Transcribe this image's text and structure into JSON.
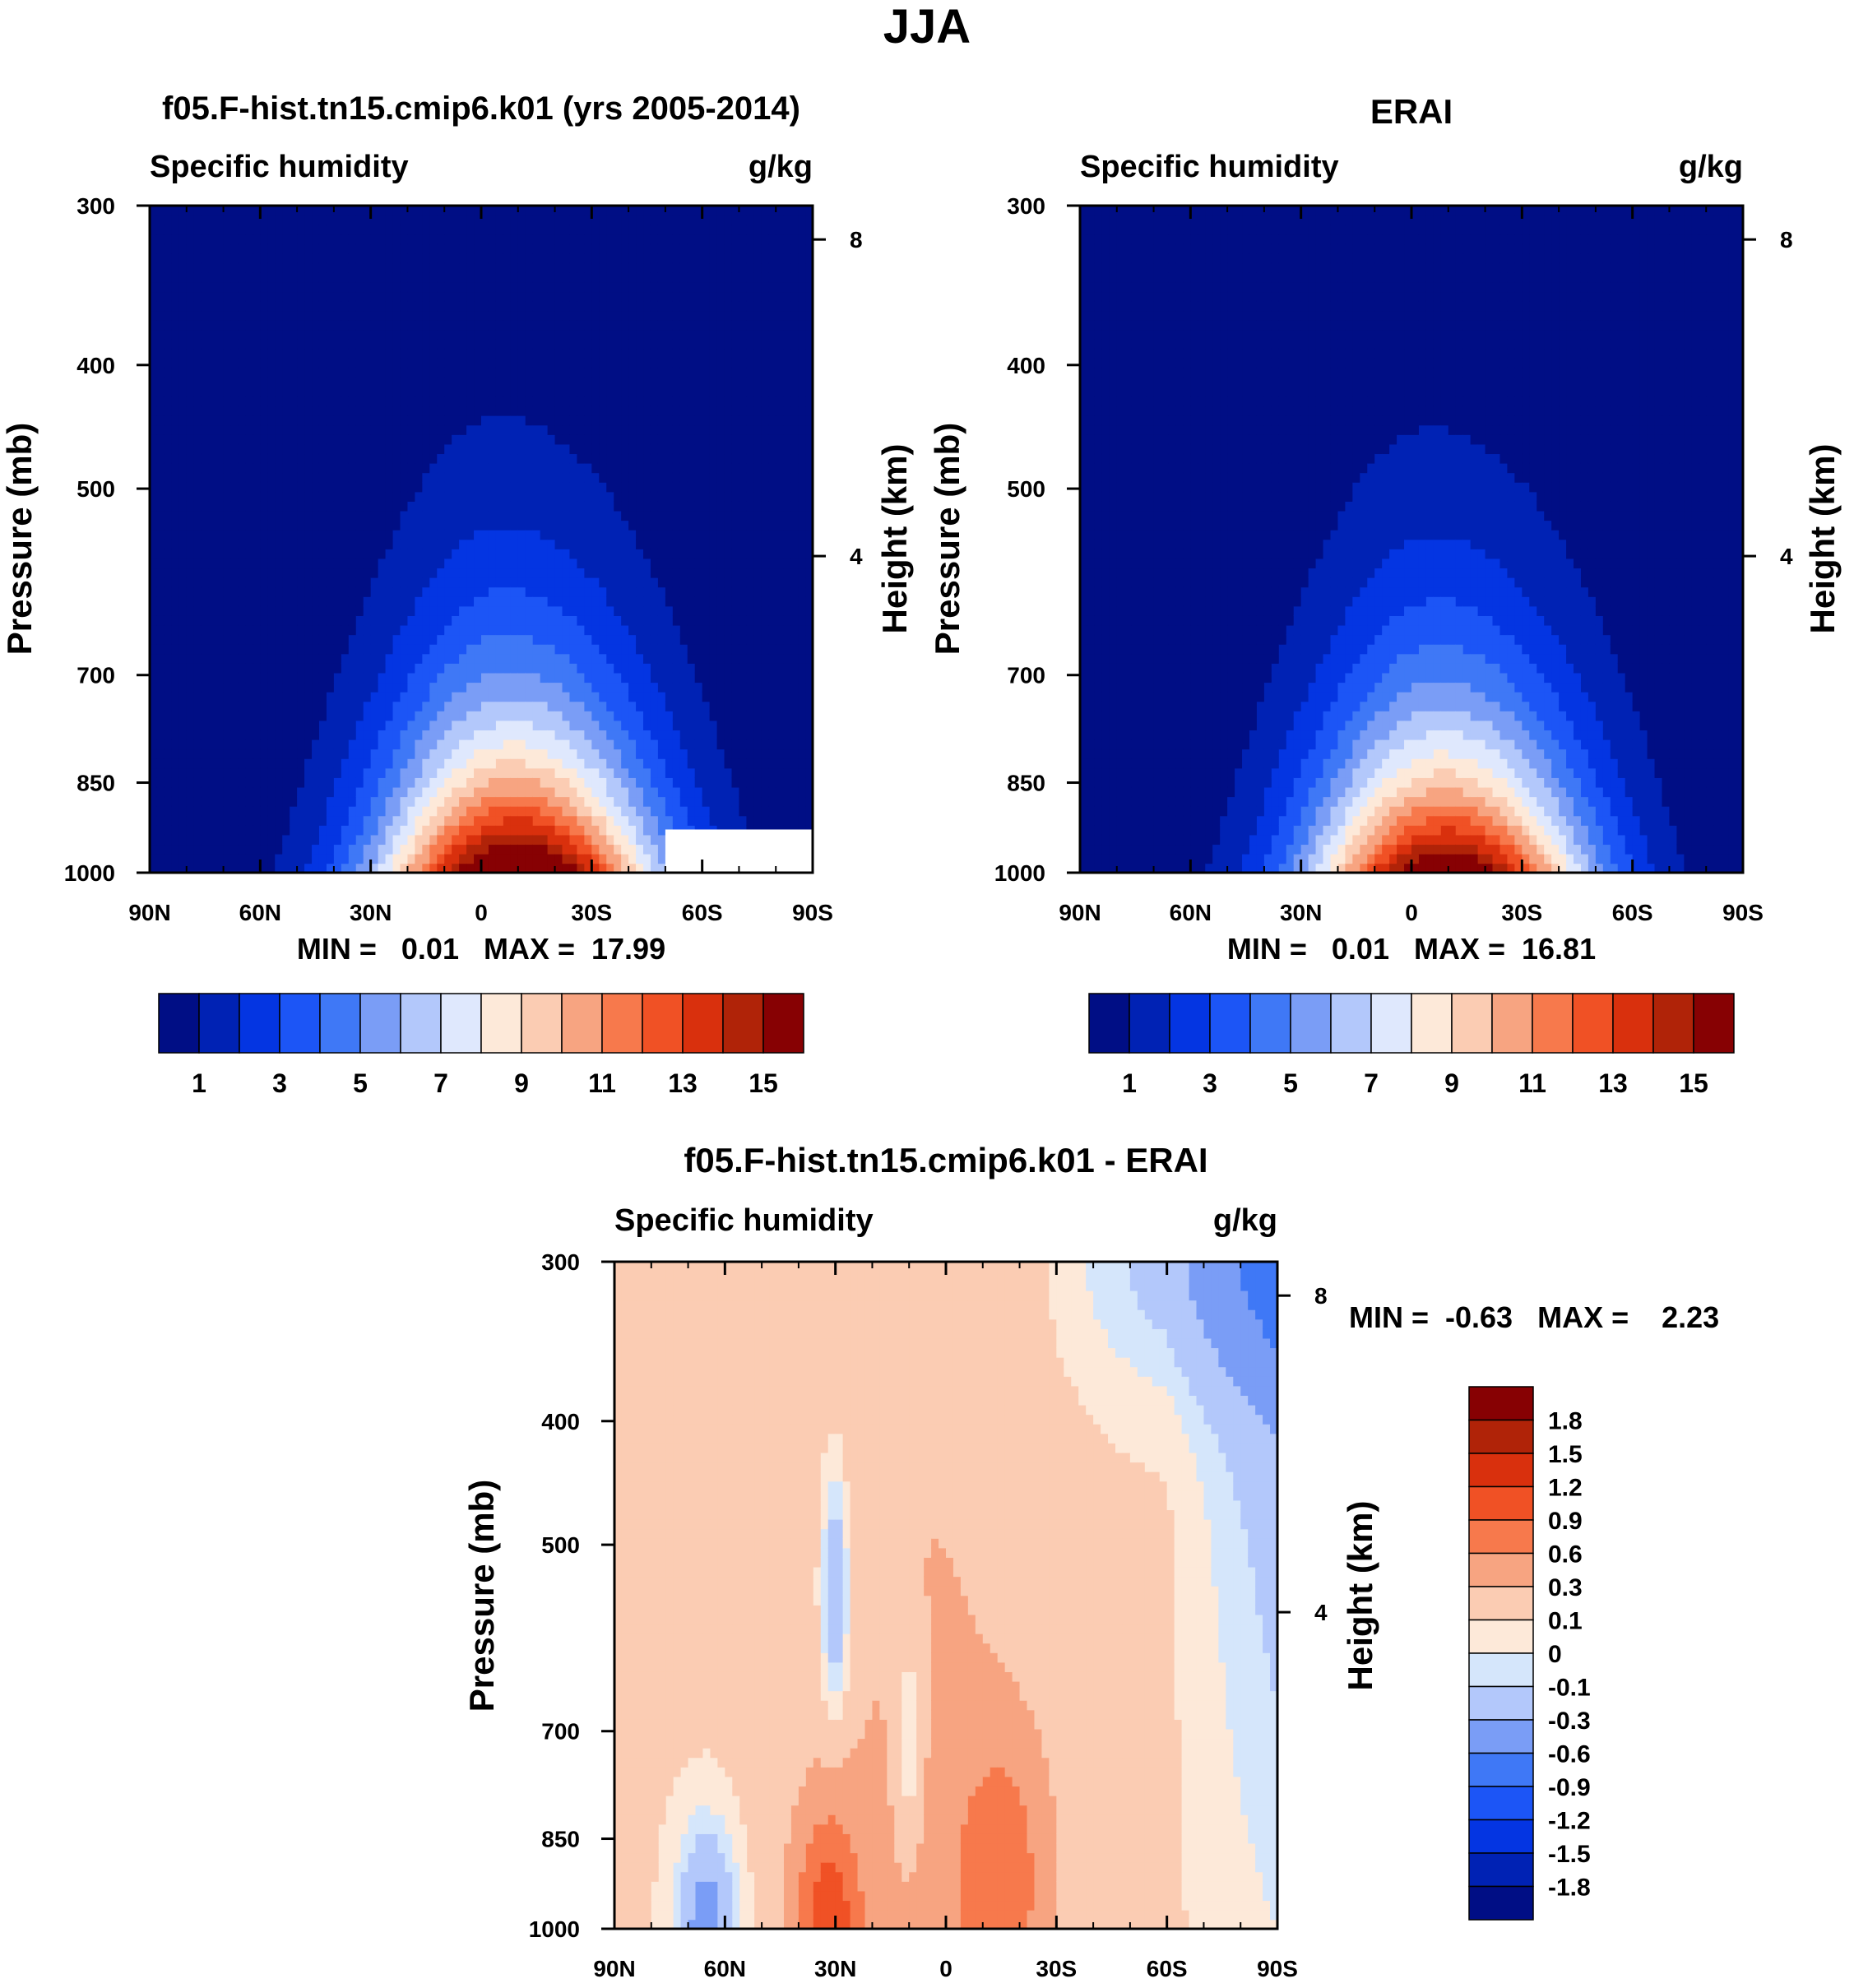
{
  "title": "JJA",
  "panels": [
    {
      "id": "model",
      "title": "f05.F-hist.tn15.cmip6.k01 (yrs 2005-2014)",
      "left_string": "Specific humidity",
      "right_string": "g/kg",
      "y_label": "Pressure (mb)",
      "y2_label": "Height (km)",
      "stats": "MIN =   0.01   MAX =  17.99"
    },
    {
      "id": "obs",
      "title": "ERAI",
      "left_string": "Specific humidity",
      "right_string": "g/kg",
      "y_label": "Pressure (mb)",
      "y2_label": "Height (km)",
      "stats": "MIN =   0.01   MAX =  16.81"
    },
    {
      "id": "diff",
      "title": "f05.F-hist.tn15.cmip6.k01 - ERAI",
      "left_string": "Specific humidity",
      "right_string": "g/kg",
      "y_label": "Pressure (mb)",
      "y2_label": "Height (km)",
      "stats": "MIN =  -0.63   MAX =    2.23"
    }
  ],
  "palette_mean": [
    "#000e85",
    "#0022b4",
    "#0435e2",
    "#1c55f6",
    "#3f78f6",
    "#7a9df6",
    "#b3c8fb",
    "#dfe8fd",
    "#fde9d9",
    "#fbccb3",
    "#f7a481",
    "#f7794c",
    "#f05125",
    "#d9300d",
    "#b02308",
    "#870103"
  ],
  "palette_diff": [
    "#000e85",
    "#0022b4",
    "#0435e2",
    "#1c55f6",
    "#3f78f6",
    "#7a9df6",
    "#b3c8fb",
    "#d5e6fb",
    "#fde9d9",
    "#fbccb3",
    "#f7a481",
    "#f7794c",
    "#f05125",
    "#d9300d",
    "#b02308",
    "#870103"
  ],
  "colorbar_mean_labels": [
    "1",
    "3",
    "5",
    "7",
    "9",
    "11",
    "13",
    "15"
  ],
  "colorbar_diff_labels": [
    "1.8",
    "1.5",
    "1.2",
    "0.9",
    "0.6",
    "0.3",
    "0.1",
    "0",
    "-0.1",
    "-0.3",
    "-0.6",
    "-0.9",
    "-1.2",
    "-1.5",
    "-1.8"
  ],
  "chart_data": [
    {
      "type": "heatmap",
      "title": "f05.F-hist.tn15.cmip6.k01 (yrs 2005-2014)",
      "xlabel": "",
      "ylabel": "Pressure (mb)",
      "x_ticks": [
        "90N",
        "60N",
        "30N",
        "0",
        "30S",
        "60S",
        "90S"
      ],
      "y_ticks": [
        300,
        400,
        500,
        700,
        850,
        1000
      ],
      "y2_ticks": [
        8,
        4
      ],
      "xlim": [
        90,
        -90
      ],
      "ylim": [
        1000,
        300
      ],
      "y_scale": "log",
      "contour_levels": [
        1,
        2,
        3,
        4,
        5,
        6,
        7,
        8,
        9,
        10,
        11,
        12,
        13,
        14,
        15
      ],
      "peak": {
        "lat": -10,
        "value": 17.99
      },
      "min": 0.01,
      "max": 17.99,
      "missing_region": {
        "lat_from": -50,
        "lat_to": -90,
        "p_from": 925,
        "p_to": 1000
      },
      "units": "g/kg"
    },
    {
      "type": "heatmap",
      "title": "ERAI",
      "xlabel": "",
      "ylabel": "Pressure (mb)",
      "x_ticks": [
        "90N",
        "60N",
        "30N",
        "0",
        "30S",
        "60S",
        "90S"
      ],
      "y_ticks": [
        300,
        400,
        500,
        700,
        850,
        1000
      ],
      "y2_ticks": [
        8,
        4
      ],
      "xlim": [
        90,
        -90
      ],
      "ylim": [
        1000,
        300
      ],
      "y_scale": "log",
      "contour_levels": [
        1,
        2,
        3,
        4,
        5,
        6,
        7,
        8,
        9,
        10,
        11,
        12,
        13,
        14,
        15
      ],
      "peak": {
        "lat": -10,
        "value": 16.81
      },
      "min": 0.01,
      "max": 16.81,
      "units": "g/kg"
    },
    {
      "type": "heatmap",
      "title": "f05.F-hist.tn15.cmip6.k01 - ERAI",
      "xlabel": "",
      "ylabel": "Pressure (mb)",
      "x_ticks": [
        "90N",
        "60N",
        "30N",
        "0",
        "30S",
        "60S",
        "90S"
      ],
      "y_ticks": [
        300,
        400,
        500,
        700,
        850,
        1000
      ],
      "y2_ticks": [
        8,
        4
      ],
      "xlim": [
        90,
        -90
      ],
      "ylim": [
        1000,
        300
      ],
      "y_scale": "log",
      "contour_levels": [
        -1.8,
        -1.5,
        -1.2,
        -0.9,
        -0.6,
        -0.3,
        -0.1,
        0,
        0.1,
        0.3,
        0.6,
        0.9,
        1.2,
        1.5,
        1.8
      ],
      "min": -0.63,
      "max": 2.23,
      "units": "g/kg"
    }
  ]
}
